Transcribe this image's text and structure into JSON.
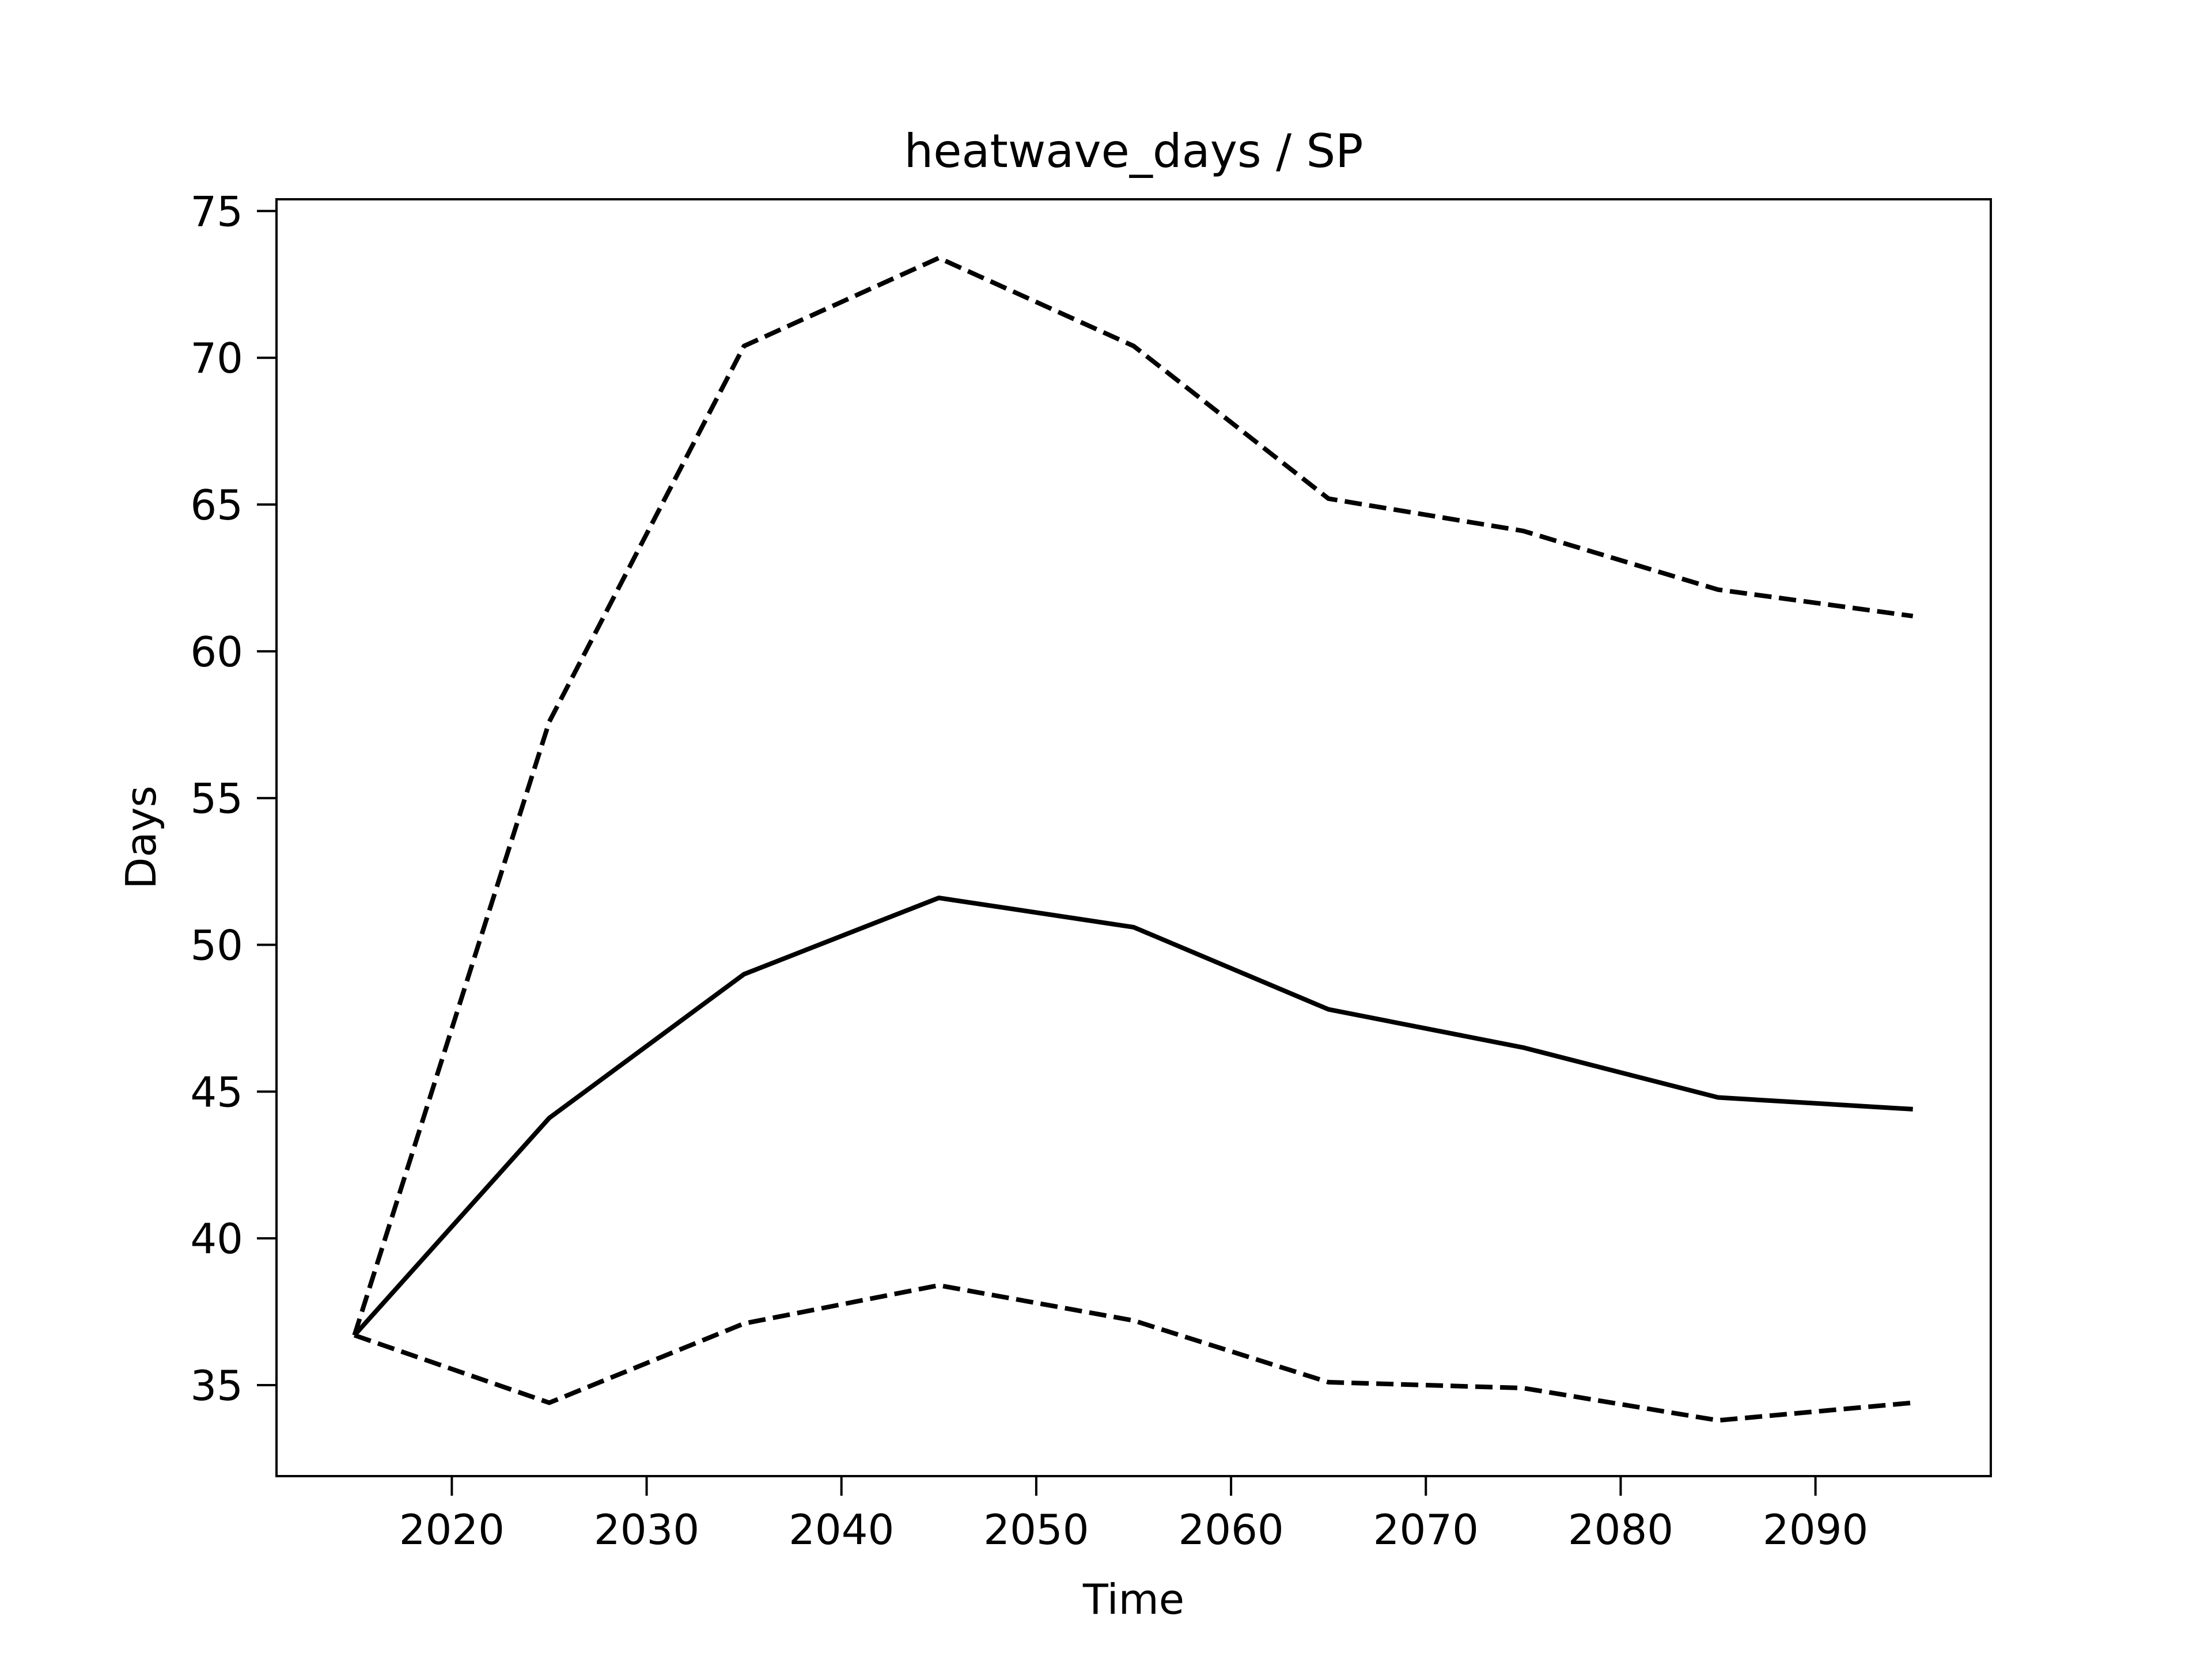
{
  "chart_data": {
    "type": "line",
    "title": "heatwave_days / SP",
    "xlabel": "Time",
    "ylabel": "Days",
    "xlim": [
      2011,
      2099
    ],
    "ylim": [
      31.9,
      75.4
    ],
    "xticks": [
      2020,
      2030,
      2040,
      2050,
      2060,
      2070,
      2080,
      2090
    ],
    "yticks": [
      35,
      40,
      45,
      50,
      55,
      60,
      65,
      70,
      75
    ],
    "grid": false,
    "legend": null,
    "x": [
      2015,
      2025,
      2035,
      2045,
      2055,
      2065,
      2075,
      2085,
      2095
    ],
    "series": [
      {
        "line_style": "dashed",
        "color": "#000000",
        "values": [
          36.7,
          57.6,
          70.4,
          73.4,
          70.4,
          65.2,
          64.1,
          62.1,
          61.2
        ]
      },
      {
        "line_style": "solid",
        "color": "#000000",
        "values": [
          36.7,
          44.1,
          49.0,
          51.6,
          50.6,
          47.8,
          46.5,
          44.8,
          44.4
        ]
      },
      {
        "line_style": "dashed",
        "color": "#000000",
        "values": [
          36.7,
          34.4,
          37.1,
          38.4,
          37.2,
          35.1,
          34.9,
          33.8,
          34.4
        ]
      }
    ]
  }
}
